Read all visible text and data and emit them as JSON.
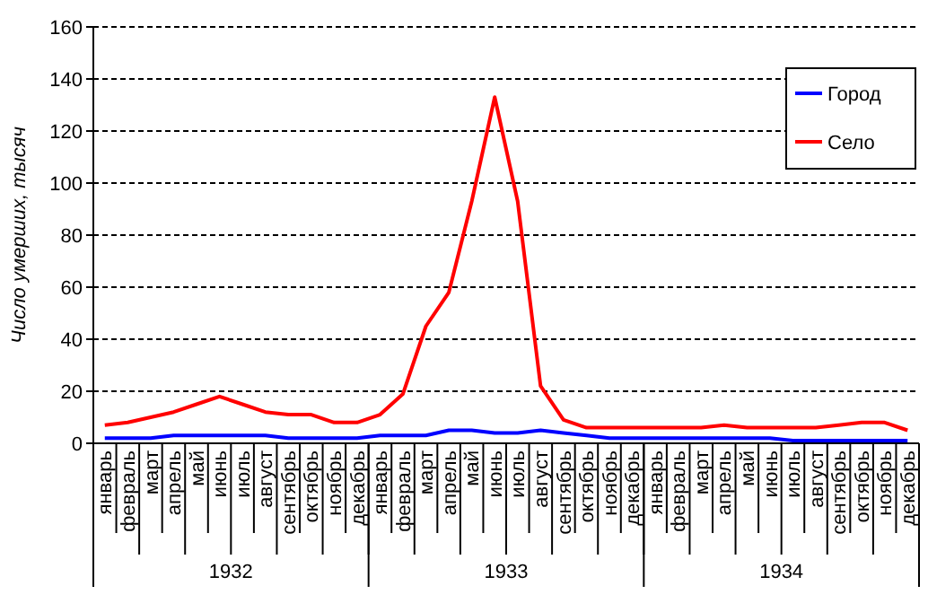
{
  "chart_data": {
    "type": "line",
    "ylabel": "Число умерших, тысяч",
    "categories": [
      "январь",
      "февраль",
      "март",
      "апрель",
      "май",
      "июнь",
      "июль",
      "август",
      "сентябрь",
      "октябрь",
      "ноябрь",
      "декабрь",
      "январь",
      "февраль",
      "март",
      "апрель",
      "май",
      "июнь",
      "июль",
      "август",
      "сентябрь",
      "октябрь",
      "ноябрь",
      "декабрь",
      "январь",
      "февраль",
      "март",
      "апрель",
      "май",
      "июнь",
      "июль",
      "август",
      "сентябрь",
      "октябрь",
      "ноябрь",
      "декабрь"
    ],
    "series": [
      {
        "name": "Город",
        "color": "#0000ff",
        "values": [
          2,
          2,
          2,
          3,
          3,
          3,
          3,
          3,
          2,
          2,
          2,
          2,
          3,
          3,
          3,
          5,
          5,
          4,
          4,
          5,
          4,
          3,
          2,
          2,
          2,
          2,
          2,
          2,
          2,
          2,
          1,
          1,
          1,
          1,
          1,
          1
        ]
      },
      {
        "name": "Село",
        "color": "#ff0000",
        "values": [
          7,
          8,
          10,
          12,
          15,
          18,
          15,
          12,
          11,
          11,
          8,
          8,
          11,
          19,
          45,
          58,
          93,
          133,
          93,
          22,
          9,
          6,
          6,
          6,
          6,
          6,
          6,
          7,
          6,
          6,
          6,
          6,
          7,
          8,
          8,
          5
        ]
      }
    ],
    "ylim": [
      0,
      160
    ],
    "yticks": [
      0,
      20,
      40,
      60,
      80,
      100,
      120,
      140,
      160
    ],
    "grid": "y",
    "line_style": "solid",
    "marker": "none",
    "legend": "top right",
    "annotations": [
      "1932",
      "1933",
      "1934"
    ]
  }
}
